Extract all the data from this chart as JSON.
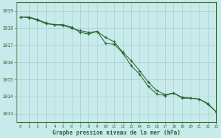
{
  "bg_color": "#c8eaea",
  "plot_bg_color": "#c8eaea",
  "grid_color": "#a8cccc",
  "line_color": "#2a6632",
  "marker_color": "#2a6632",
  "xlabel": "Graphe pression niveau de la mer (hPa)",
  "ylim": [
    1012.5,
    1019.5
  ],
  "xlim": [
    -0.5,
    23
  ],
  "yticks": [
    1013,
    1014,
    1015,
    1016,
    1017,
    1018,
    1019
  ],
  "xticks": [
    0,
    1,
    2,
    3,
    4,
    5,
    6,
    7,
    8,
    9,
    10,
    11,
    12,
    13,
    14,
    15,
    16,
    17,
    18,
    19,
    20,
    21,
    22,
    23
  ],
  "series1": [
    1018.65,
    1018.65,
    1018.5,
    1018.3,
    1018.2,
    1018.15,
    1018.0,
    1017.85,
    1017.75,
    1017.8,
    1017.1,
    1017.05,
    1016.55,
    1015.8,
    1015.3,
    1014.6,
    1014.15,
    1014.05,
    1014.2,
    1013.9,
    1013.9,
    1013.85,
    1013.55,
    1013.1
  ],
  "series2": [
    1018.65,
    1018.6,
    1018.45,
    1018.25,
    1018.2,
    1018.2,
    1018.05,
    1017.75,
    1017.65,
    1017.8,
    1017.45,
    1017.2,
    1016.6,
    1016.1,
    1015.5,
    1014.85,
    1014.35,
    1014.1,
    1014.2,
    1013.95,
    1013.9,
    1013.85,
    1013.6,
    1013.1
  ]
}
